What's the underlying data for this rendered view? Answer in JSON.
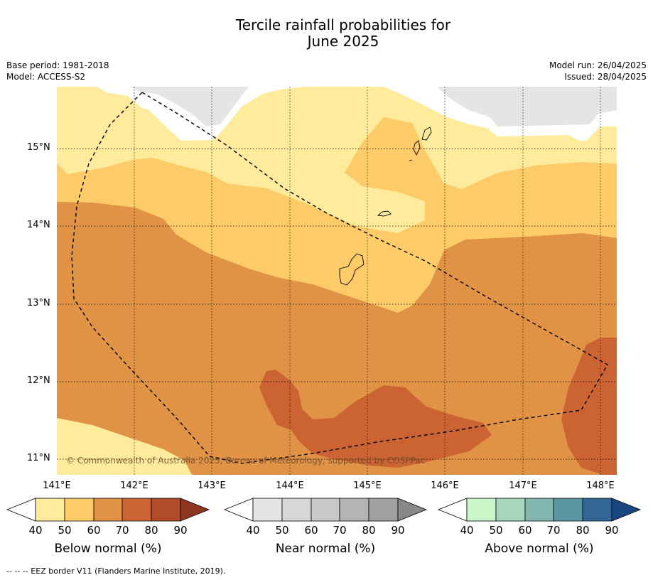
{
  "title_line1": "Tercile rainfall probabilities for",
  "title_line2": "June 2025",
  "meta_left": [
    "Base period: 1981-2018",
    "Model: ACCESS-S2"
  ],
  "meta_right": [
    "Model run: 26/04/2025",
    "Issued: 28/04/2025"
  ],
  "lat_labels": [
    "15°N",
    "14°N",
    "13°N",
    "12°N",
    "11°N"
  ],
  "lon_labels": [
    "141°E",
    "142°E",
    "143°E",
    "144°E",
    "145°E",
    "146°E",
    "147°E",
    "148°E"
  ],
  "copyright": "© Commonwealth of Australia 2025, Bureau of Meteorology, supported by COSPPac",
  "colorbars": [
    {
      "title": "Below normal (%)",
      "ticks": [
        "40",
        "50",
        "60",
        "70",
        "80",
        "90"
      ],
      "colors": [
        "#ffeb9c",
        "#fdcb68",
        "#e09245",
        "#cb6333",
        "#b04d28",
        "#8e3520"
      ]
    },
    {
      "title": "Near normal (%)",
      "ticks": [
        "40",
        "50",
        "60",
        "70",
        "80",
        "90"
      ],
      "colors": [
        "#e5e5e5",
        "#d7d7d7",
        "#c8c8c8",
        "#b4b4b4",
        "#a0a0a0",
        "#888888"
      ]
    },
    {
      "title": "Above normal (%)",
      "ticks": [
        "40",
        "50",
        "60",
        "70",
        "80",
        "90"
      ],
      "colors": [
        "#c9f7c9",
        "#a6d6bb",
        "#82b6ae",
        "#5b96a3",
        "#336896",
        "#18487f"
      ]
    }
  ],
  "footnote": "--  --  -- EEZ border V11 (Flanders Marine Institute, 2019)."
}
